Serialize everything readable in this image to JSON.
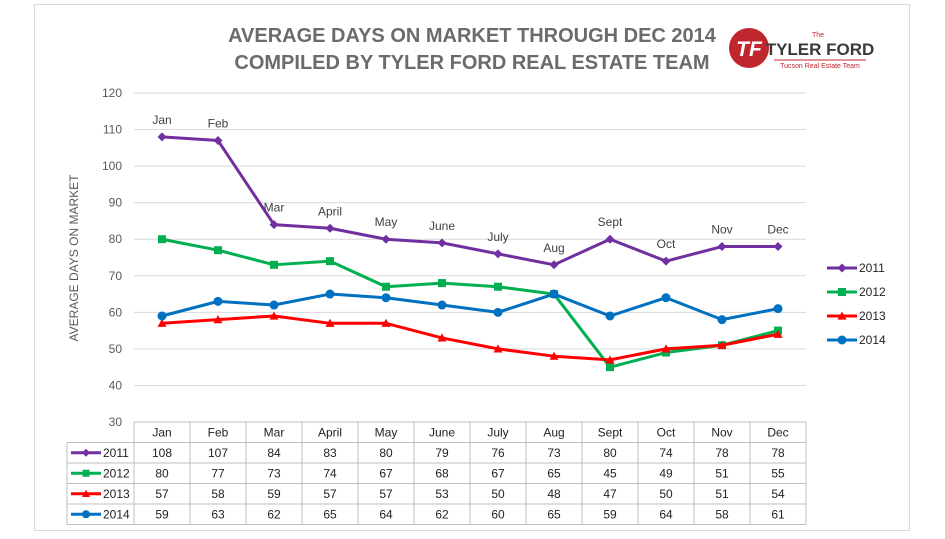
{
  "logo": {
    "small_text": "The",
    "name": "TYLER FORD",
    "tagline": "Tucson Real Estate Team",
    "monogram": "TF",
    "brand_color": "#c0262d"
  },
  "chart_data": {
    "type": "line",
    "title_lines": [
      "AVERAGE DAYS ON MARKET THROUGH DEC 2014",
      "COMPILED BY TYLER FORD REAL ESTATE TEAM"
    ],
    "ylabel": "AVERAGE DAYS ON MARKET",
    "xlabel": "",
    "ylim": [
      30,
      120
    ],
    "yticks": [
      30,
      40,
      50,
      60,
      70,
      80,
      90,
      100,
      110,
      120
    ],
    "grid": true,
    "legend_position": "right",
    "data_table": true,
    "categories": [
      "Jan",
      "Feb",
      "Mar",
      "April",
      "May",
      "June",
      "July",
      "Aug",
      "Sept",
      "Oct",
      "Nov",
      "Dec"
    ],
    "point_labels": [
      "Jan",
      "Feb",
      "Mar",
      "April",
      "May",
      "June",
      "July",
      "Aug",
      "Sept",
      "Oct",
      "Nov",
      "Dec"
    ],
    "series": [
      {
        "name": "2011",
        "color": "#7030a0",
        "marker": "diamond",
        "values": [
          108,
          107,
          84,
          83,
          80,
          79,
          76,
          73,
          80,
          74,
          78,
          78
        ]
      },
      {
        "name": "2012",
        "color": "#00b050",
        "marker": "square",
        "values": [
          80,
          77,
          73,
          74,
          67,
          68,
          67,
          65,
          45,
          49,
          51,
          55
        ]
      },
      {
        "name": "2013",
        "color": "#ff0000",
        "marker": "triangle",
        "values": [
          57,
          58,
          59,
          57,
          57,
          53,
          50,
          48,
          47,
          50,
          51,
          54
        ]
      },
      {
        "name": "2014",
        "color": "#0070c0",
        "marker": "circle",
        "values": [
          59,
          63,
          62,
          65,
          64,
          62,
          60,
          65,
          59,
          64,
          58,
          61
        ]
      }
    ]
  }
}
